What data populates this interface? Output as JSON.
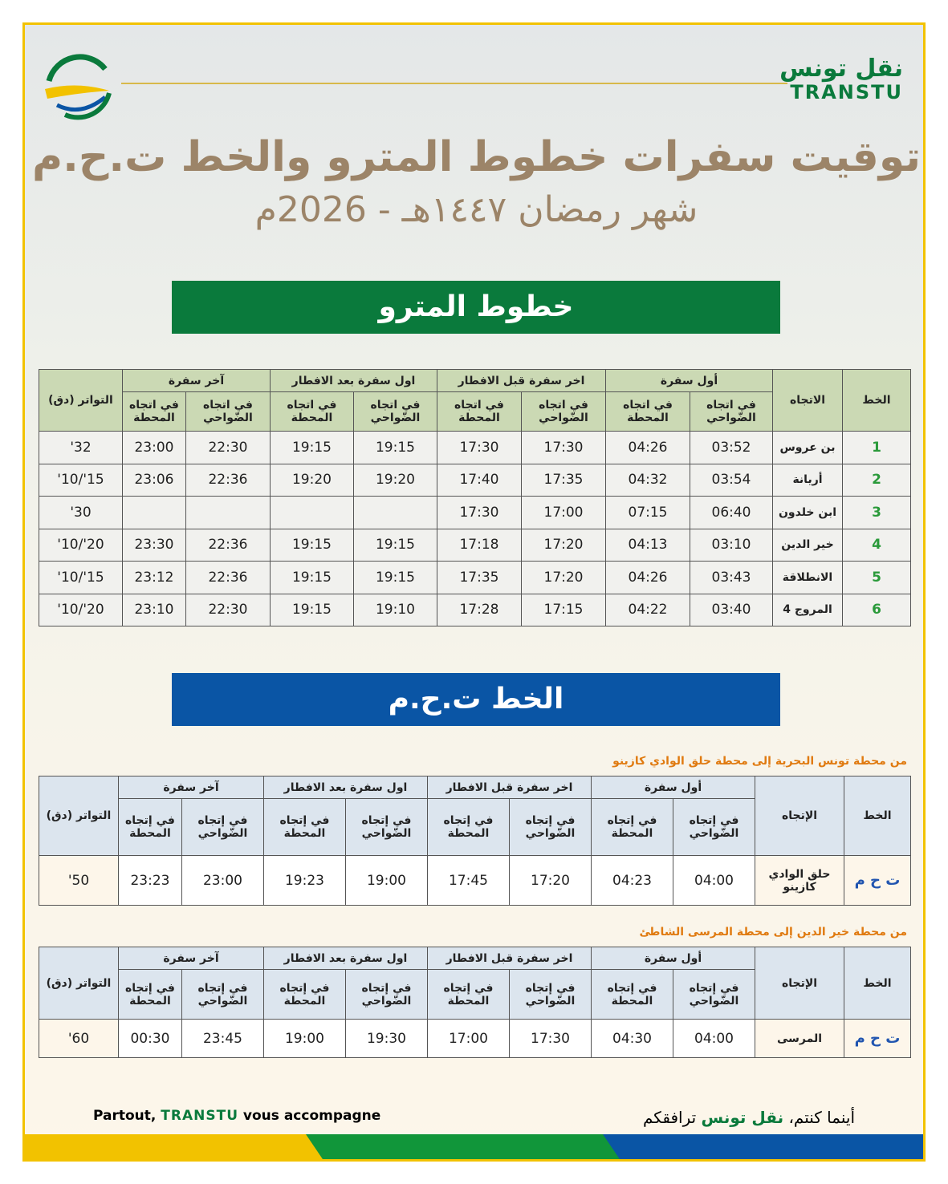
{
  "logo": {
    "arabic": "نقل تونس",
    "latin": "TRANSTU"
  },
  "title": "توقيت سفرات خطوط المترو والخط ت.ح.م",
  "subtitle": "شهر رمضان ١٤٤٧هـ - 2026م",
  "colors": {
    "green": "#0a7a3c",
    "blue": "#0a55a5",
    "title": "#9c8468",
    "orange": "#e07a10"
  },
  "metro": {
    "banner": "خطوط المترو",
    "headers": {
      "line": "الخط",
      "direction": "الاتجاه",
      "first": "أول سفرة",
      "last_before_iftar": "اخر سفرة قبل الافطار",
      "first_after_iftar": "اول سفرة بعد الافطار",
      "last": "آخر سفرة",
      "suburbs": "في اتجاه الضّواحي",
      "station": "في اتجاه المحطة",
      "frequency": "التواتر (دق)"
    },
    "rows": [
      {
        "line": "1",
        "direction": "بن عروس",
        "times": [
          "03:52",
          "04:26",
          "17:30",
          "17:30",
          "19:15",
          "19:15",
          "22:30",
          "23:00"
        ],
        "freq": "32'"
      },
      {
        "line": "2",
        "direction": "أريانة",
        "times": [
          "03:54",
          "04:32",
          "17:35",
          "17:40",
          "19:20",
          "19:20",
          "22:36",
          "23:06"
        ],
        "freq": "15'/10'"
      },
      {
        "line": "3",
        "direction": "ابن خلدون",
        "times": [
          "06:40",
          "07:15",
          "17:00",
          "17:30",
          "",
          "",
          "",
          ""
        ],
        "freq": "30'"
      },
      {
        "line": "4",
        "direction": "خير الدين",
        "times": [
          "03:10",
          "04:13",
          "17:20",
          "17:18",
          "19:15",
          "19:15",
          "22:36",
          "23:30"
        ],
        "freq": "20'/10'"
      },
      {
        "line": "5",
        "direction": "الانطلاقة",
        "times": [
          "03:43",
          "04:26",
          "17:20",
          "17:35",
          "19:15",
          "19:15",
          "22:36",
          "23:12"
        ],
        "freq": "15'/10'"
      },
      {
        "line": "6",
        "direction": "المروج 4",
        "times": [
          "03:40",
          "04:22",
          "17:15",
          "17:28",
          "19:10",
          "19:15",
          "22:30",
          "23:10"
        ],
        "freq": "20'/10'"
      }
    ]
  },
  "tcm": {
    "banner": "الخط ت.ح.م",
    "headers": {
      "line": "الخط",
      "direction": "الإتجاه",
      "first": "أول سفرة",
      "last_before_iftar": "اخر سفرة قبل الافطار",
      "first_after_iftar": "اول سفرة بعد الافطار",
      "last": "آخر سفرة",
      "suburbs": "في إتجاه الضّواحي",
      "station": "في إتجاه المحطة",
      "frequency": "التواتر (دق)"
    },
    "tables": [
      {
        "caption": "من محطة تونس البحرية إلى محطة حلق الوادي كازينو",
        "line": "ت ح م",
        "direction": "حلق الوادي كازينو",
        "times": [
          "04:00",
          "04:23",
          "17:20",
          "17:45",
          "19:00",
          "19:23",
          "23:00",
          "23:23"
        ],
        "freq": "50'"
      },
      {
        "caption": "من محطة خير الدين إلى محطة المرسى الشاطئ",
        "line": "ت ح م",
        "direction": "المرسى",
        "times": [
          "04:00",
          "04:30",
          "17:30",
          "17:00",
          "19:30",
          "19:00",
          "23:45",
          "00:30"
        ],
        "freq": "60'"
      }
    ]
  },
  "footer": {
    "fr_prefix": "Partout,",
    "fr_brand": "TRANSTU",
    "fr_suffix": "vous accompagne",
    "ar_prefix": "أينما كنتم،",
    "ar_brand": "نقل تونس",
    "ar_suffix": "ترافقكم"
  }
}
